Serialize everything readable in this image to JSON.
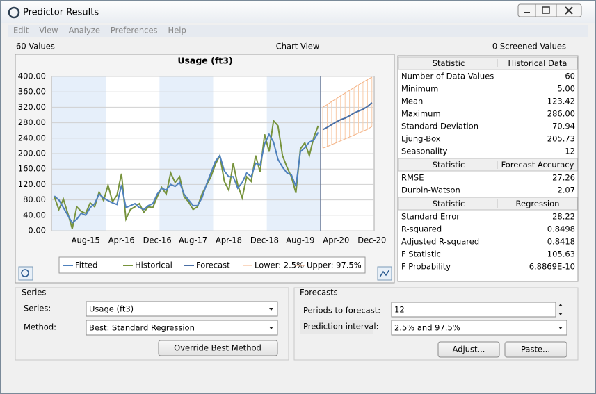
{
  "window": {
    "title": "Predictor Results"
  },
  "menu": [
    "Edit",
    "View",
    "Analyze",
    "Preferences",
    "Help"
  ],
  "header": {
    "left": "60 Values",
    "center": "Chart View",
    "right": "0 Screened Values"
  },
  "chart_data": {
    "type": "line",
    "title": "Usage (ft3)",
    "categories": [
      null,
      null,
      null,
      null,
      null,
      null,
      null,
      "Aug-15",
      null,
      null,
      null,
      null,
      null,
      null,
      null,
      "Apr-16",
      null,
      null,
      null,
      null,
      null,
      null,
      null,
      "Dec-16",
      null,
      null,
      null,
      null,
      null,
      null,
      null,
      "Aug-17",
      null,
      null,
      null,
      null,
      null,
      null,
      null,
      "Apr-18",
      null,
      null,
      null,
      null,
      null,
      null,
      null,
      "Dec-18",
      null,
      null,
      null,
      null,
      null,
      null,
      null,
      "Aug-19",
      null,
      null,
      null,
      null,
      null,
      null,
      null,
      "Apr-20",
      null,
      null,
      null,
      null,
      null,
      null,
      null,
      "Dec-20"
    ],
    "series": [
      {
        "name": "Fitted",
        "color": "#4f81bd",
        "values": [
          90,
          80,
          60,
          40,
          20,
          30,
          45,
          40,
          60,
          70,
          95,
          85,
          78,
          72,
          68,
          118,
          60,
          65,
          70,
          60,
          55,
          65,
          70,
          95,
          110,
          105,
          120,
          115,
          125,
          95,
          80,
          65,
          65,
          85,
          120,
          150,
          180,
          195,
          155,
          140,
          140,
          110,
          125,
          150,
          140,
          175,
          170,
          225,
          250,
          230,
          185,
          165,
          150,
          145,
          115,
          205,
          215,
          230,
          235,
          255,
          null,
          null,
          null,
          null,
          null,
          null,
          null,
          null,
          null,
          null,
          null,
          null
        ]
      },
      {
        "name": "Historical",
        "color": "#77933c",
        "values": [
          88,
          55,
          82,
          45,
          5,
          62,
          50,
          45,
          72,
          62,
          100,
          78,
          118,
          75,
          92,
          148,
          30,
          55,
          62,
          70,
          48,
          62,
          60,
          88,
          112,
          95,
          150,
          125,
          140,
          88,
          75,
          55,
          62,
          95,
          118,
          140,
          172,
          195,
          128,
          105,
          175,
          118,
          85,
          140,
          128,
          195,
          152,
          250,
          205,
          285,
          272,
          195,
          165,
          140,
          98,
          212,
          228,
          195,
          242,
          272,
          null,
          null,
          null,
          null,
          null,
          null,
          null,
          null,
          null,
          null,
          null,
          null
        ]
      },
      {
        "name": "Forecast",
        "color": "#4a6fa5",
        "values": [
          null,
          null,
          null,
          null,
          null,
          null,
          null,
          null,
          null,
          null,
          null,
          null,
          null,
          null,
          null,
          null,
          null,
          null,
          null,
          null,
          null,
          null,
          null,
          null,
          null,
          null,
          null,
          null,
          null,
          null,
          null,
          null,
          null,
          null,
          null,
          null,
          null,
          null,
          null,
          null,
          null,
          null,
          null,
          null,
          null,
          null,
          null,
          null,
          null,
          null,
          null,
          null,
          null,
          null,
          null,
          null,
          null,
          null,
          null,
          null,
          262,
          268,
          275,
          282,
          288,
          292,
          298,
          305,
          310,
          315,
          322,
          332
        ]
      },
      {
        "name": "Lower: 2.5%",
        "color": "#f4b183",
        "values": [
          null,
          null,
          null,
          null,
          null,
          null,
          null,
          null,
          null,
          null,
          null,
          null,
          null,
          null,
          null,
          null,
          null,
          null,
          null,
          null,
          null,
          null,
          null,
          null,
          null,
          null,
          null,
          null,
          null,
          null,
          null,
          null,
          null,
          null,
          null,
          null,
          null,
          null,
          null,
          null,
          null,
          null,
          null,
          null,
          null,
          null,
          null,
          null,
          null,
          null,
          null,
          null,
          null,
          null,
          null,
          null,
          null,
          null,
          null,
          null,
          214,
          218,
          223,
          228,
          233,
          238,
          243,
          248,
          253,
          258,
          263,
          270
        ]
      },
      {
        "name": "Upper: 97.5%",
        "color": "#f4b183",
        "values": [
          null,
          null,
          null,
          null,
          null,
          null,
          null,
          null,
          null,
          null,
          null,
          null,
          null,
          null,
          null,
          null,
          null,
          null,
          null,
          null,
          null,
          null,
          null,
          null,
          null,
          null,
          null,
          null,
          null,
          null,
          null,
          null,
          null,
          null,
          null,
          null,
          null,
          null,
          null,
          null,
          null,
          null,
          null,
          null,
          null,
          null,
          null,
          null,
          null,
          null,
          null,
          null,
          null,
          null,
          null,
          null,
          null,
          null,
          null,
          null,
          320,
          327,
          335,
          342,
          350,
          357,
          364,
          371,
          378,
          385,
          392,
          398
        ]
      }
    ],
    "ylim": [
      0,
      400
    ],
    "yticks": [
      {
        "value": 0,
        "label": "0.00"
      },
      {
        "value": 40,
        "label": "40.00"
      },
      {
        "value": 80,
        "label": "80.00"
      },
      {
        "value": 120,
        "label": "120.00"
      },
      {
        "value": 160,
        "label": "160.00"
      },
      {
        "value": 200,
        "label": "200.00"
      },
      {
        "value": 240,
        "label": "240.00"
      },
      {
        "value": 280,
        "label": "280.00"
      },
      {
        "value": 320,
        "label": "320.00"
      },
      {
        "value": 360,
        "label": "360.00"
      },
      {
        "value": 400,
        "label": "400.00"
      }
    ]
  },
  "statistics": {
    "sections": [
      {
        "header": [
          "Statistic",
          "Historical Data"
        ],
        "rows": [
          [
            "Number of Data Values",
            "60"
          ],
          [
            "Minimum",
            "5.00"
          ],
          [
            "Mean",
            "123.42"
          ],
          [
            "Maximum",
            "286.00"
          ],
          [
            "Standard Deviation",
            "70.94"
          ],
          [
            "Ljung-Box",
            "205.73"
          ],
          [
            "Seasonality",
            "12"
          ]
        ]
      },
      {
        "header": [
          "Statistic",
          "Forecast Accuracy"
        ],
        "rows": [
          [
            "RMSE",
            "27.26"
          ],
          [
            "Durbin-Watson",
            "2.07"
          ]
        ]
      },
      {
        "header": [
          "Statistic",
          "Regression"
        ],
        "rows": [
          [
            "Standard Error",
            "28.22"
          ],
          [
            "R-squared",
            "0.8498"
          ],
          [
            "Adjusted R-squared",
            "0.8418"
          ],
          [
            "F Statistic",
            "105.63"
          ],
          [
            "F Probability",
            "6.8869E-10"
          ]
        ]
      }
    ]
  },
  "series_panel": {
    "title": "Series",
    "series_label": "Series:",
    "series_value": "Usage (ft3)",
    "method_label": "Method:",
    "method_value": "Best: Standard Regression",
    "button": "Override Best Method"
  },
  "forecasts_panel": {
    "title": "Forecasts",
    "periods_label": "Periods to forecast:",
    "periods_value": "12",
    "interval_label": "Prediction interval:",
    "interval_value": "2.5% and 97.5%",
    "adjust": "Adjust...",
    "paste": "Paste..."
  }
}
